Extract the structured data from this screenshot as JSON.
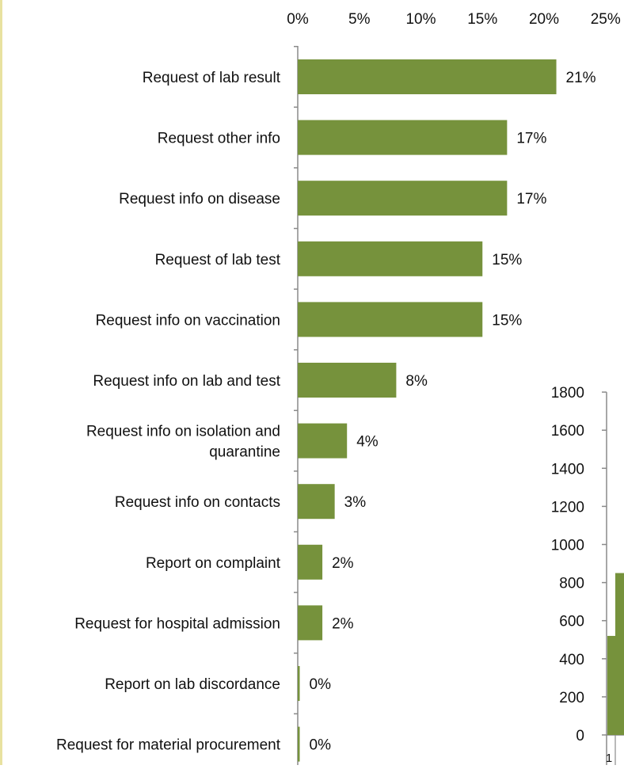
{
  "chart_data": [
    {
      "type": "bar",
      "orientation": "horizontal",
      "categories": [
        "Request of lab result",
        "Request other info",
        "Request info on disease",
        "Request of lab test",
        "Request info on vaccination",
        "Request info on lab and test",
        "Request info on isolation and quantine",
        "Request info on contacts",
        "Report on complaint",
        "Request for hospital admission",
        "Report on lab discordance",
        "Request for material procurement"
      ],
      "category_lines": [
        [
          "Request of lab result"
        ],
        [
          "Request other info"
        ],
        [
          "Request info on disease"
        ],
        [
          "Request of lab test"
        ],
        [
          "Request info on vaccination"
        ],
        [
          "Request info on lab and test"
        ],
        [
          "Request info on isolation and",
          "quarantine"
        ],
        [
          "Request info on contacts"
        ],
        [
          "Report on complaint"
        ],
        [
          "Request for hospital admission"
        ],
        [
          "Report on lab discordance"
        ],
        [
          "Request for material procurement"
        ]
      ],
      "values": [
        21,
        17,
        17,
        15,
        15,
        8,
        4,
        3,
        2,
        2,
        0,
        0
      ],
      "data_labels": [
        "21%",
        "17%",
        "17%",
        "15%",
        "15%",
        "8%",
        "4%",
        "3%",
        "2%",
        "2%",
        "0%",
        "0%"
      ],
      "xlim": [
        0,
        25
      ],
      "x_ticks": [
        0,
        5,
        10,
        15,
        20,
        25
      ],
      "x_tick_labels": [
        "0%",
        "5%",
        "10%",
        "15%",
        "20%",
        "25%"
      ],
      "x_axis_position": "top",
      "grid": false,
      "bar_color": "#76923c",
      "title": "",
      "xlabel": "",
      "ylabel": ""
    },
    {
      "type": "bar",
      "partial": true,
      "categories": [
        "1"
      ],
      "series": [
        {
          "values": [
            520
          ]
        },
        {
          "values": [
            850
          ]
        }
      ],
      "ylim": [
        0,
        1800
      ],
      "y_ticks": [
        0,
        200,
        400,
        600,
        800,
        1000,
        1200,
        1400,
        1600,
        1800
      ],
      "y_tick_labels": [
        "0",
        "200",
        "400",
        "600",
        "800",
        "1000",
        "1200",
        "1400",
        "1600",
        "1800"
      ],
      "grid": false,
      "bar_color": "#76923c",
      "title": "",
      "xlabel": "",
      "ylabel": ""
    }
  ]
}
